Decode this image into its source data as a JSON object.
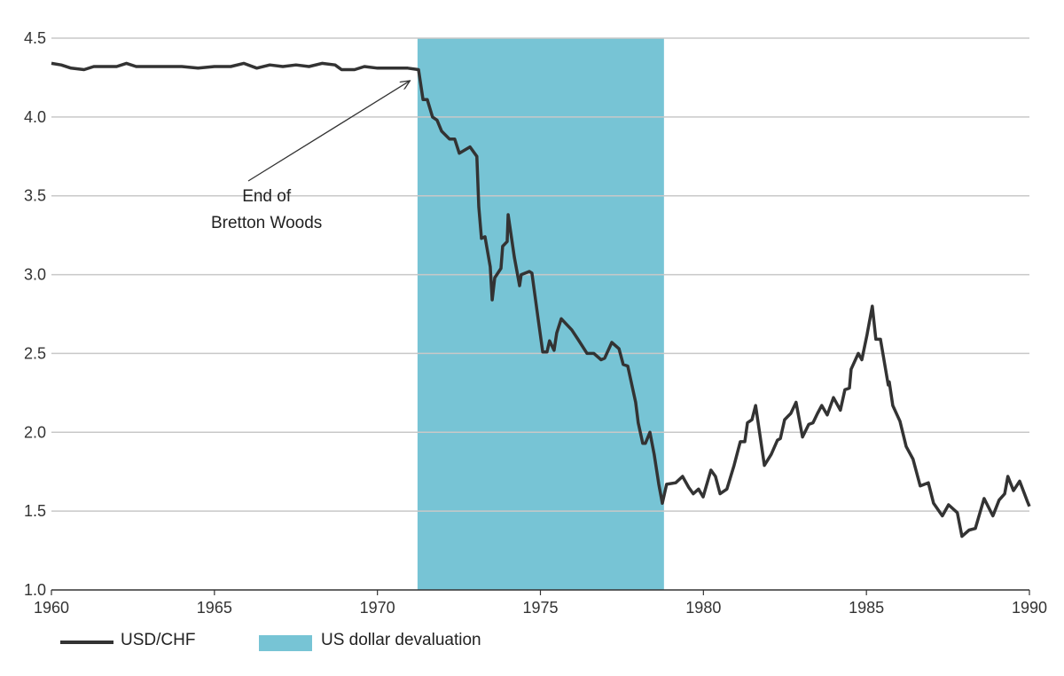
{
  "chart_data": {
    "type": "line",
    "title": "",
    "xlabel": "",
    "ylabel": "",
    "xlim": [
      1960,
      1990
    ],
    "ylim": [
      1.0,
      4.5
    ],
    "grid": true,
    "x_ticks": [
      "1960",
      "1965",
      "1970",
      "1975",
      "1980",
      "1985",
      "1990"
    ],
    "y_ticks": [
      "4.5",
      "4.0",
      "3.5",
      "3.0",
      "2.5",
      "2.0",
      "1.5",
      "1.0"
    ],
    "legend_position": "bottom-left",
    "colors": {
      "line": "#333333",
      "shade": "#77c4d5",
      "grid": "#c8c8c8"
    },
    "shaded_region": {
      "name": "US dollar devaluation",
      "x_start": 1971.23,
      "x_end": 1978.79
    },
    "annotation": {
      "lines": [
        "End of",
        "Bretton Woods"
      ],
      "x": 1966.6,
      "y": 3.42,
      "arrow_to": [
        1971.0,
        4.23
      ]
    },
    "legend": [
      {
        "label": "USD/CHF",
        "kind": "line"
      },
      {
        "label": "US dollar devaluation",
        "kind": "area"
      }
    ],
    "series": [
      {
        "name": "USD/CHF",
        "points": [
          [
            1960.0,
            4.34
          ],
          [
            1960.3,
            4.33
          ],
          [
            1960.6,
            4.31
          ],
          [
            1961.0,
            4.3
          ],
          [
            1961.3,
            4.32
          ],
          [
            1961.7,
            4.32
          ],
          [
            1962.0,
            4.32
          ],
          [
            1962.3,
            4.34
          ],
          [
            1962.6,
            4.32
          ],
          [
            1963.0,
            4.32
          ],
          [
            1963.5,
            4.32
          ],
          [
            1964.0,
            4.32
          ],
          [
            1964.5,
            4.31
          ],
          [
            1965.0,
            4.32
          ],
          [
            1965.5,
            4.32
          ],
          [
            1965.9,
            4.34
          ],
          [
            1966.3,
            4.31
          ],
          [
            1966.7,
            4.33
          ],
          [
            1967.1,
            4.32
          ],
          [
            1967.5,
            4.33
          ],
          [
            1967.9,
            4.32
          ],
          [
            1968.3,
            4.34
          ],
          [
            1968.7,
            4.33
          ],
          [
            1968.9,
            4.3
          ],
          [
            1969.3,
            4.3
          ],
          [
            1969.6,
            4.32
          ],
          [
            1970.0,
            4.31
          ],
          [
            1970.5,
            4.31
          ],
          [
            1970.93,
            4.31
          ],
          [
            1971.26,
            4.3
          ],
          [
            1971.4,
            4.11
          ],
          [
            1971.53,
            4.11
          ],
          [
            1971.69,
            4.0
          ],
          [
            1971.83,
            3.98
          ],
          [
            1971.97,
            3.91
          ],
          [
            1972.21,
            3.86
          ],
          [
            1972.37,
            3.86
          ],
          [
            1972.51,
            3.77
          ],
          [
            1972.84,
            3.81
          ],
          [
            1973.05,
            3.75
          ],
          [
            1973.11,
            3.43
          ],
          [
            1973.19,
            3.23
          ],
          [
            1973.3,
            3.24
          ],
          [
            1973.46,
            3.05
          ],
          [
            1973.52,
            2.84
          ],
          [
            1973.6,
            2.98
          ],
          [
            1973.79,
            3.04
          ],
          [
            1973.84,
            3.18
          ],
          [
            1973.98,
            3.21
          ],
          [
            1974.01,
            3.38
          ],
          [
            1974.2,
            3.11
          ],
          [
            1974.36,
            2.93
          ],
          [
            1974.41,
            3.0
          ],
          [
            1974.66,
            3.02
          ],
          [
            1974.74,
            3.01
          ],
          [
            1974.93,
            2.72
          ],
          [
            1975.07,
            2.51
          ],
          [
            1975.2,
            2.51
          ],
          [
            1975.28,
            2.58
          ],
          [
            1975.42,
            2.52
          ],
          [
            1975.5,
            2.63
          ],
          [
            1975.64,
            2.72
          ],
          [
            1975.96,
            2.65
          ],
          [
            1976.15,
            2.59
          ],
          [
            1976.43,
            2.5
          ],
          [
            1976.64,
            2.5
          ],
          [
            1976.86,
            2.46
          ],
          [
            1976.97,
            2.47
          ],
          [
            1977.19,
            2.57
          ],
          [
            1977.41,
            2.53
          ],
          [
            1977.54,
            2.43
          ],
          [
            1977.68,
            2.42
          ],
          [
            1977.92,
            2.19
          ],
          [
            1978.0,
            2.06
          ],
          [
            1978.14,
            1.93
          ],
          [
            1978.22,
            1.93
          ],
          [
            1978.36,
            2.0
          ],
          [
            1978.49,
            1.86
          ],
          [
            1978.63,
            1.67
          ],
          [
            1978.74,
            1.55
          ],
          [
            1978.87,
            1.67
          ],
          [
            1979.15,
            1.68
          ],
          [
            1979.36,
            1.72
          ],
          [
            1979.55,
            1.65
          ],
          [
            1979.69,
            1.61
          ],
          [
            1979.85,
            1.64
          ],
          [
            1979.99,
            1.59
          ],
          [
            1980.23,
            1.76
          ],
          [
            1980.37,
            1.72
          ],
          [
            1980.51,
            1.61
          ],
          [
            1980.72,
            1.64
          ],
          [
            1980.94,
            1.79
          ],
          [
            1981.13,
            1.94
          ],
          [
            1981.27,
            1.94
          ],
          [
            1981.35,
            2.06
          ],
          [
            1981.49,
            2.08
          ],
          [
            1981.6,
            2.17
          ],
          [
            1981.87,
            1.79
          ],
          [
            1982.08,
            1.86
          ],
          [
            1982.27,
            1.95
          ],
          [
            1982.36,
            1.96
          ],
          [
            1982.49,
            2.08
          ],
          [
            1982.68,
            2.12
          ],
          [
            1982.84,
            2.19
          ],
          [
            1983.04,
            1.97
          ],
          [
            1983.23,
            2.05
          ],
          [
            1983.36,
            2.06
          ],
          [
            1983.5,
            2.12
          ],
          [
            1983.63,
            2.17
          ],
          [
            1983.8,
            2.11
          ],
          [
            1983.99,
            2.22
          ],
          [
            1984.2,
            2.14
          ],
          [
            1984.34,
            2.27
          ],
          [
            1984.48,
            2.28
          ],
          [
            1984.53,
            2.4
          ],
          [
            1984.75,
            2.5
          ],
          [
            1984.86,
            2.46
          ],
          [
            1985.02,
            2.62
          ],
          [
            1985.18,
            2.8
          ],
          [
            1985.29,
            2.59
          ],
          [
            1985.43,
            2.59
          ],
          [
            1985.67,
            2.3
          ],
          [
            1985.7,
            2.32
          ],
          [
            1985.81,
            2.17
          ],
          [
            1986.03,
            2.07
          ],
          [
            1986.22,
            1.91
          ],
          [
            1986.43,
            1.83
          ],
          [
            1986.65,
            1.66
          ],
          [
            1986.9,
            1.68
          ],
          [
            1987.06,
            1.55
          ],
          [
            1987.33,
            1.47
          ],
          [
            1987.52,
            1.54
          ],
          [
            1987.79,
            1.49
          ],
          [
            1987.93,
            1.34
          ],
          [
            1988.15,
            1.38
          ],
          [
            1988.34,
            1.39
          ],
          [
            1988.61,
            1.58
          ],
          [
            1988.88,
            1.47
          ],
          [
            1989.07,
            1.57
          ],
          [
            1989.24,
            1.61
          ],
          [
            1989.34,
            1.72
          ],
          [
            1989.51,
            1.63
          ],
          [
            1989.7,
            1.69
          ],
          [
            1989.94,
            1.56
          ],
          [
            1990.0,
            1.53
          ]
        ]
      }
    ]
  }
}
